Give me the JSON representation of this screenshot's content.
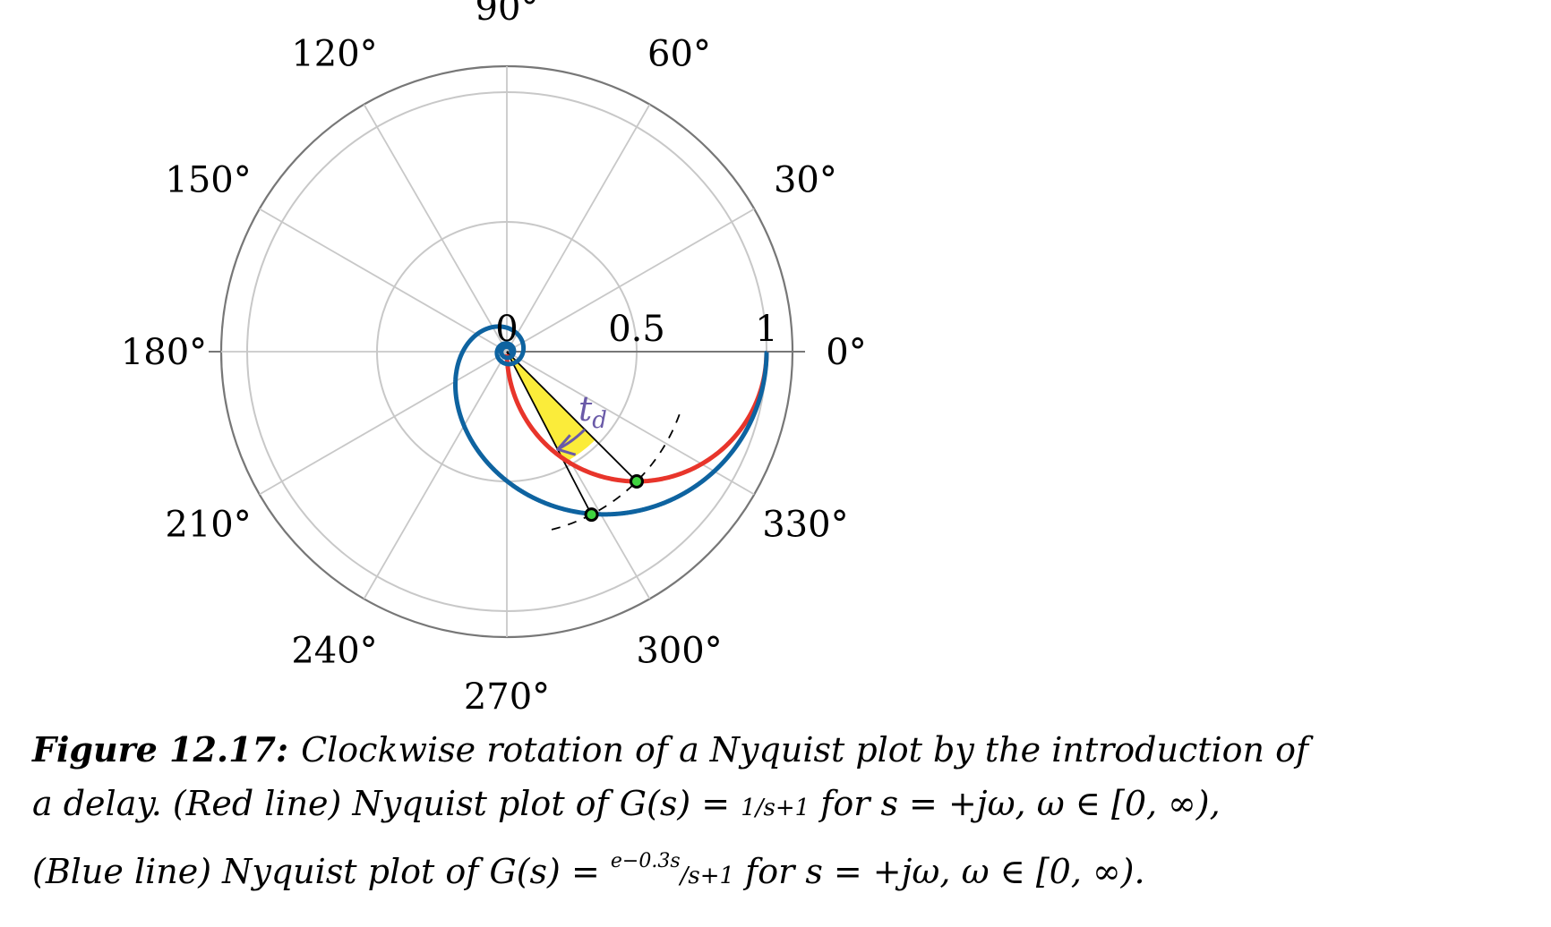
{
  "chart_data": {
    "type": "line",
    "polar": true,
    "angle_ticks": [
      "0°",
      "30°",
      "60°",
      "90°",
      "120°",
      "150°",
      "180°",
      "210°",
      "240°",
      "270°",
      "300°",
      "330°"
    ],
    "angle_tick_values_deg": [
      0,
      30,
      60,
      90,
      120,
      150,
      180,
      210,
      240,
      270,
      300,
      330
    ],
    "radial_ticks": [
      "0",
      "0.5",
      "1"
    ],
    "radial_tick_values": [
      0,
      0.5,
      1
    ],
    "rlim": [
      0,
      1.1
    ],
    "grid": true,
    "series": [
      {
        "name": "Red line",
        "description_formula": "G(s) = 1/(s+1)",
        "color": "#e8352b",
        "points": [
          {
            "omega": 0,
            "re": 1.0,
            "im": 0.0
          },
          {
            "omega": 0.1,
            "re": 0.99,
            "im": -0.099
          },
          {
            "omega": 0.2,
            "re": 0.962,
            "im": -0.192
          },
          {
            "omega": 0.3,
            "re": 0.917,
            "im": -0.275
          },
          {
            "omega": 0.4,
            "re": 0.862,
            "im": -0.345
          },
          {
            "omega": 0.5,
            "re": 0.8,
            "im": -0.4
          },
          {
            "omega": 0.7,
            "re": 0.671,
            "im": -0.47
          },
          {
            "omega": 1.0,
            "re": 0.5,
            "im": -0.5
          },
          {
            "omega": 1.5,
            "re": 0.308,
            "im": -0.462
          },
          {
            "omega": 2.0,
            "re": 0.2,
            "im": -0.4
          },
          {
            "omega": 3.0,
            "re": 0.1,
            "im": -0.3
          },
          {
            "omega": 5.0,
            "re": 0.038,
            "im": -0.192
          },
          {
            "omega": 10.0,
            "re": 0.01,
            "im": -0.099
          },
          {
            "omega": 30.0,
            "re": 0.001,
            "im": -0.033
          }
        ]
      },
      {
        "name": "Blue line",
        "description_formula": "G(s) = e^(-0.3s)/(s+1)",
        "color": "#0e63a0",
        "delay": 0.3,
        "omega_max": 60
      }
    ],
    "highlight_points": [
      {
        "series": "Red line",
        "omega": 1.0,
        "re": 0.5,
        "im": -0.5
      },
      {
        "series": "Blue line",
        "omega": 1.0,
        "re": 0.326,
        "im": -0.628
      }
    ],
    "annotation": {
      "text": "t",
      "subscript": "d",
      "color": "#6a5aa8"
    },
    "wedge_color": "#fbec3a"
  },
  "caption": {
    "label": "Figure 12.17:",
    "line1": "Clockwise rotation of a Nyquist plot by the introduction of",
    "line2_a": "a delay.  (Red line) Nyquist plot of G(s) = ",
    "line2_frac": "1/s+1",
    "line2_b": " for s = +jω, ω ∈ [0, ∞),",
    "line3_a": "(Blue line) Nyquist plot of G(s) = ",
    "line3_sup": "e−0.3s",
    "line3_frac": "/s+1",
    "line3_b": " for s = +jω, ω ∈ [0, ∞)."
  }
}
